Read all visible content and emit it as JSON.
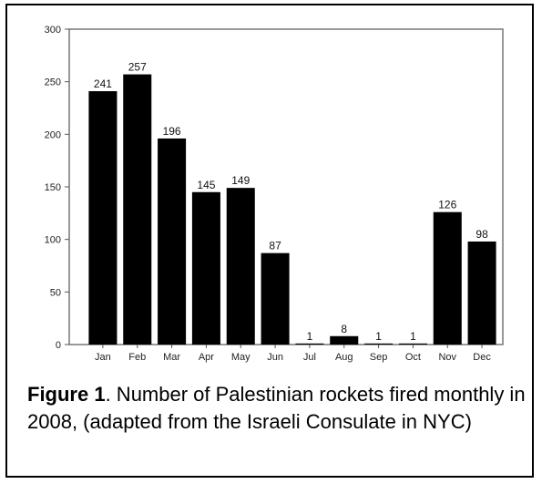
{
  "chart_data": {
    "type": "bar",
    "title": "",
    "xlabel": "",
    "ylabel": "",
    "categories": [
      "Jan",
      "Feb",
      "Mar",
      "Apr",
      "May",
      "Jun",
      "Jul",
      "Aug",
      "Sep",
      "Oct",
      "Nov",
      "Dec"
    ],
    "values": [
      241,
      257,
      196,
      145,
      149,
      87,
      1,
      8,
      1,
      1,
      126,
      98
    ],
    "data_labels": [
      "241",
      "257",
      "196",
      "145",
      "149",
      "87",
      "1",
      "8",
      "1",
      "1",
      "126",
      "98"
    ],
    "yticks": [
      0,
      50,
      100,
      150,
      200,
      250,
      300
    ],
    "ylim": [
      0,
      300
    ],
    "bar_color": "#000000",
    "grid": false,
    "legend": "none"
  },
  "caption": {
    "label": "Figure 1",
    "text": ". Number of Palestinian rockets fired monthly in 2008, (adapted from the Israeli Consulate in NYC)"
  }
}
